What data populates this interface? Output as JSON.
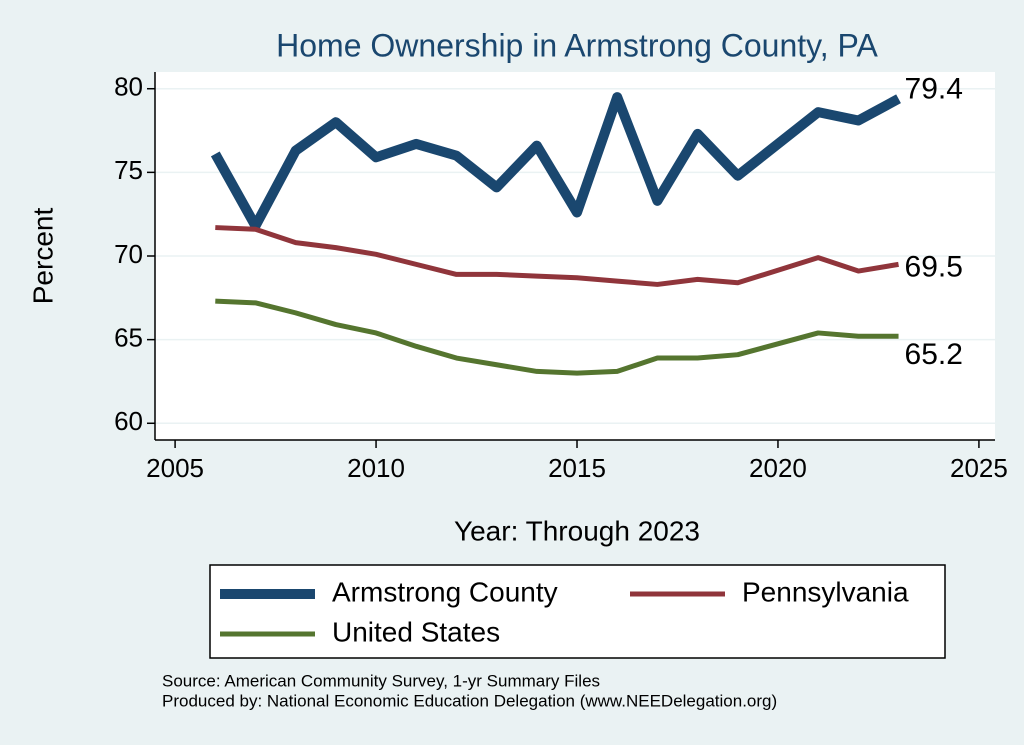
{
  "chart_data": {
    "type": "line",
    "title": "Home Ownership in Armstrong County, PA",
    "x_label": "Year: Through 2023",
    "y_label": "Percent",
    "x": [
      2006,
      2007,
      2008,
      2009,
      2010,
      2011,
      2012,
      2013,
      2014,
      2015,
      2016,
      2017,
      2018,
      2019,
      2021,
      2022,
      2023
    ],
    "series": [
      {
        "name": "Armstrong County",
        "color": "#1a476f",
        "values": [
          76.1,
          71.8,
          76.3,
          78.0,
          75.9,
          76.7,
          76.0,
          74.1,
          76.6,
          72.6,
          79.5,
          73.3,
          77.3,
          74.8,
          78.6,
          78.1,
          79.4
        ]
      },
      {
        "name": "Pennsylvania",
        "color": "#90353b",
        "values": [
          71.7,
          71.6,
          70.8,
          70.5,
          70.1,
          69.5,
          68.9,
          68.9,
          68.8,
          68.7,
          68.5,
          68.3,
          68.6,
          68.4,
          69.9,
          69.1,
          69.5
        ]
      },
      {
        "name": "United States",
        "color": "#55752f",
        "values": [
          67.3,
          67.2,
          66.6,
          65.9,
          65.4,
          64.6,
          63.9,
          63.5,
          63.1,
          63.0,
          63.1,
          63.9,
          63.9,
          64.1,
          65.4,
          65.2,
          65.2
        ]
      }
    ],
    "xlim": [
      2004.5,
      2025.4
    ],
    "xticks": [
      2005,
      2010,
      2015,
      2020,
      2025
    ],
    "ylim": [
      59,
      81
    ],
    "yticks": [
      60,
      65,
      70,
      75,
      80
    ],
    "grid": true,
    "notes": [
      "Source: American Community Survey, 1-yr Summary Files",
      "Produced by: National Economic Education Delegation (www.NEEDelegation.org)"
    ]
  }
}
